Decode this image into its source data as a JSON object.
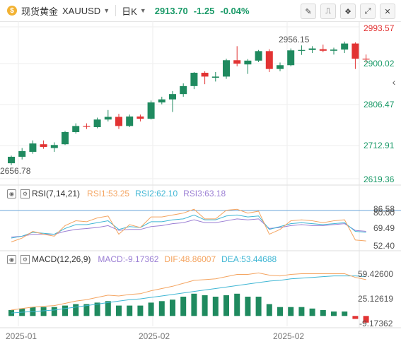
{
  "toolbar": {
    "coin_glyph": "$",
    "symbol": "现货黄金",
    "ticker": "XAUUSD",
    "period": "日K",
    "last_price": "2913.70",
    "change": "-1.25",
    "change_pct": "-0.04%",
    "tools": [
      {
        "name": "draw-tool-icon",
        "glyph": "✎"
      },
      {
        "name": "indicator-icon",
        "glyph": "⎍"
      },
      {
        "name": "compare-icon",
        "glyph": "❖"
      },
      {
        "name": "expand-icon",
        "glyph": "⤢"
      },
      {
        "name": "close-icon",
        "glyph": "✕"
      }
    ]
  },
  "colors": {
    "up": "#1f8a5f",
    "down": "#e23333",
    "axis_green": "#1a9a68",
    "rsi1": "#f4a460",
    "rsi2": "#3fb6d4",
    "rsi3": "#9b7fd4",
    "dif": "#f4a460",
    "dea": "#3fb6d4"
  },
  "price_axis": {
    "labels": [
      "2993.57",
      "2900.02",
      "2806.47",
      "2712.91",
      "2619.36"
    ]
  },
  "annotations": {
    "high_label": "2956.15",
    "low_label": "2656.78"
  },
  "x_axis": {
    "labels": [
      "2025-01",
      "2025-02",
      "2025-02"
    ]
  },
  "rsi": {
    "title": "RSI(7,14,21)",
    "rsi1": "RSI1:53.25",
    "rsi2": "RSI2:62.10",
    "rsi3": "RSI3:63.18",
    "axis": {
      "labels": [
        "86.58",
        "80.00",
        "69.49",
        "52.40"
      ]
    }
  },
  "macd": {
    "title": "MACD(12,26,9)",
    "macd": "MACD:-9.17362",
    "dif": "DIF:48.86007",
    "dea": "DEA:53.44688",
    "axis": {
      "labels": [
        "59.42600",
        "25.12619",
        "-9.17362"
      ]
    }
  },
  "chart_data": {
    "type": "candlestick",
    "price_range": [
      2590,
      3010
    ],
    "candles": [
      [
        2640,
        2660,
        2635,
        2657
      ],
      [
        2657,
        2680,
        2650,
        2672
      ],
      [
        2670,
        2700,
        2665,
        2692
      ],
      [
        2690,
        2700,
        2678,
        2683
      ],
      [
        2680,
        2695,
        2670,
        2688
      ],
      [
        2690,
        2725,
        2688,
        2722
      ],
      [
        2722,
        2745,
        2718,
        2738
      ],
      [
        2738,
        2745,
        2730,
        2737
      ],
      [
        2735,
        2760,
        2732,
        2755
      ],
      [
        2755,
        2780,
        2750,
        2762
      ],
      [
        2762,
        2770,
        2730,
        2738
      ],
      [
        2738,
        2768,
        2735,
        2763
      ],
      [
        2763,
        2768,
        2750,
        2757
      ],
      [
        2757,
        2805,
        2755,
        2800
      ],
      [
        2800,
        2815,
        2795,
        2808
      ],
      [
        2808,
        2830,
        2775,
        2822
      ],
      [
        2822,
        2850,
        2815,
        2843
      ],
      [
        2843,
        2880,
        2835,
        2878
      ],
      [
        2878,
        2882,
        2848,
        2868
      ],
      [
        2865,
        2880,
        2855,
        2868
      ],
      [
        2868,
        2915,
        2862,
        2911
      ],
      [
        2911,
        2948,
        2895,
        2902
      ],
      [
        2900,
        2914,
        2875,
        2910
      ],
      [
        2910,
        2938,
        2906,
        2935
      ],
      [
        2935,
        2940,
        2880,
        2888
      ],
      [
        2888,
        2905,
        2882,
        2898
      ],
      [
        2898,
        2942,
        2895,
        2937
      ],
      [
        2937,
        2950,
        2925,
        2938
      ],
      [
        2938,
        2948,
        2930,
        2942
      ],
      [
        2940,
        2952,
        2932,
        2936
      ],
      [
        2936,
        2944,
        2926,
        2939
      ],
      [
        2939,
        2960,
        2930,
        2955
      ],
      [
        2955,
        2958,
        2888,
        2915
      ],
      [
        2915,
        2926,
        2905,
        2913.7
      ]
    ],
    "rsi": {
      "rsi1": [
        52,
        56,
        63,
        60,
        58,
        69,
        74,
        73,
        77,
        79,
        60,
        70,
        67,
        78,
        78,
        80,
        82,
        86,
        76,
        76,
        85,
        86,
        82,
        84,
        60,
        65,
        74,
        75,
        74,
        72,
        74,
        75,
        54,
        53
      ],
      "rsi2": [
        56,
        58,
        62,
        61,
        60,
        66,
        70,
        70,
        72,
        74,
        65,
        68,
        67,
        73,
        73,
        75,
        76,
        80,
        75,
        75,
        79,
        80,
        78,
        79,
        65,
        68,
        71,
        72,
        71,
        70,
        71,
        72,
        63,
        62
      ],
      "rsi3": [
        57,
        58,
        60,
        60,
        60,
        63,
        65,
        66,
        67,
        69,
        64,
        65,
        65,
        68,
        69,
        71,
        72,
        75,
        72,
        72,
        74,
        76,
        75,
        76,
        66,
        67,
        69,
        70,
        69,
        69,
        70,
        71,
        64,
        63
      ],
      "range": [
        45,
        95
      ]
    },
    "macd": {
      "dif": [
        8,
        10,
        12,
        13,
        14,
        17,
        20,
        22,
        25,
        28,
        27,
        29,
        30,
        34,
        37,
        40,
        44,
        48,
        49,
        50,
        53,
        56,
        56,
        58,
        55,
        54,
        56,
        57,
        57,
        57,
        57,
        57,
        52,
        49
      ],
      "dea": [
        4,
        5,
        6,
        7,
        8,
        10,
        12,
        14,
        16,
        18,
        20,
        22,
        23,
        25,
        27,
        29,
        31,
        33,
        35,
        37,
        39,
        41,
        43,
        45,
        47,
        48,
        50,
        51,
        52,
        53,
        54,
        54,
        54,
        53
      ],
      "hist": [
        8,
        10,
        12,
        12,
        12,
        14,
        16,
        16,
        18,
        20,
        14,
        14,
        14,
        18,
        20,
        22,
        26,
        30,
        28,
        26,
        28,
        30,
        26,
        26,
        16,
        12,
        12,
        12,
        10,
        8,
        6,
        6,
        -4,
        -9
      ],
      "range": [
        -14,
        66
      ]
    }
  }
}
